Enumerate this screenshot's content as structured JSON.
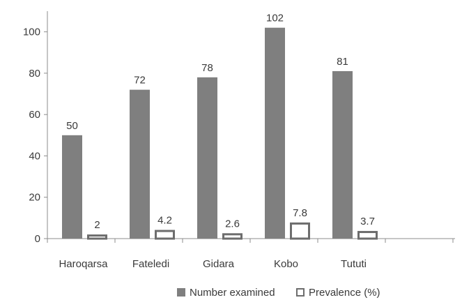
{
  "chart_data": {
    "type": "bar",
    "title": "",
    "xlabel": "",
    "ylabel": "",
    "categories": [
      "Haroqarsa",
      "Fateledi",
      "Gidara",
      "Kobo",
      "Tututi"
    ],
    "series": [
      {
        "name": "Number examined",
        "values": [
          50,
          72,
          78,
          102,
          81
        ],
        "labels": [
          "50",
          "72",
          "78",
          "102",
          "81"
        ],
        "color": "#7f7f7f",
        "style": "filled"
      },
      {
        "name": "Prevalence (%)",
        "values": [
          2,
          4.2,
          2.6,
          7.8,
          3.7
        ],
        "labels": [
          "2",
          "4.2",
          "2.6",
          "7.8",
          "3.7"
        ],
        "color": "#ffffff",
        "stroke": "#6d6d6d",
        "style": "outlined"
      }
    ],
    "ylim": [
      0,
      110
    ],
    "yticks": [
      "0",
      "20",
      "40",
      "60",
      "80",
      "100"
    ],
    "grid": false,
    "legend_position": "bottom"
  }
}
